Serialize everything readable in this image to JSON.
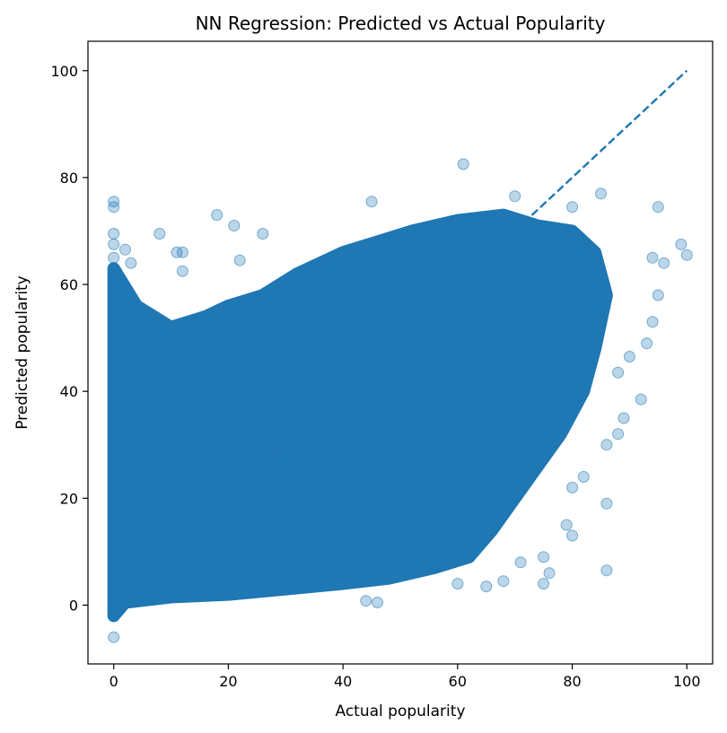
{
  "chart_data": {
    "type": "scatter",
    "title": "NN Regression: Predicted vs Actual Popularity",
    "xlabel": "Actual popularity",
    "ylabel": "Predicted popularity",
    "xlim": [
      -4.5,
      104.5
    ],
    "ylim": [
      -11,
      105.5
    ],
    "xticks": [
      0,
      20,
      40,
      60,
      80,
      100
    ],
    "yticks": [
      0,
      20,
      40,
      60,
      80,
      100
    ],
    "xtick_labels": [
      "0",
      "20",
      "40",
      "60",
      "80",
      "100"
    ],
    "ytick_labels": [
      "0",
      "20",
      "40",
      "60",
      "80",
      "100"
    ],
    "grid": false,
    "legend": "none",
    "marker_color": "#1f77b4",
    "marker_alpha": 0.3,
    "reference_line": {
      "style": "dashed",
      "color": "#1f77b4",
      "x": [
        0,
        100
      ],
      "y": [
        0,
        100
      ]
    },
    "series": [
      {
        "dense_region": [
          [
            0,
            -2
          ],
          [
            0,
            63
          ],
          [
            4,
            56
          ],
          [
            10,
            52
          ],
          [
            16,
            54
          ],
          [
            20,
            56
          ],
          [
            26,
            58
          ],
          [
            32,
            62
          ],
          [
            40,
            66
          ],
          [
            46,
            68
          ],
          [
            52,
            70
          ],
          [
            60,
            72
          ],
          [
            68,
            73
          ],
          [
            74,
            71
          ],
          [
            80,
            70
          ],
          [
            84,
            66
          ],
          [
            86,
            58
          ],
          [
            84,
            48
          ],
          [
            82,
            40
          ],
          [
            78,
            32
          ],
          [
            74,
            26
          ],
          [
            70,
            20
          ],
          [
            66,
            14
          ],
          [
            62,
            9
          ],
          [
            56,
            7
          ],
          [
            48,
            5
          ],
          [
            40,
            4
          ],
          [
            30,
            3
          ],
          [
            20,
            2
          ],
          [
            10,
            1.5
          ],
          [
            2,
            0.5
          ]
        ],
        "outliers": [
          [
            0,
            75.5
          ],
          [
            0,
            74.5
          ],
          [
            0,
            69.5
          ],
          [
            0,
            67.5
          ],
          [
            0,
            65
          ],
          [
            0,
            -6
          ],
          [
            2,
            66.5
          ],
          [
            3,
            64
          ],
          [
            8,
            69.5
          ],
          [
            11,
            66
          ],
          [
            12,
            66
          ],
          [
            12,
            62.5
          ],
          [
            18,
            73
          ],
          [
            21,
            71
          ],
          [
            22,
            64.5
          ],
          [
            26,
            69.5
          ],
          [
            61,
            82.5
          ],
          [
            45,
            75.5
          ],
          [
            70,
            76.5
          ],
          [
            80,
            74.5
          ],
          [
            85,
            77
          ],
          [
            95,
            74.5
          ],
          [
            99,
            67.5
          ],
          [
            100,
            65.5
          ],
          [
            94,
            65
          ],
          [
            96,
            64
          ],
          [
            95,
            58
          ],
          [
            94,
            53
          ],
          [
            93,
            49
          ],
          [
            90,
            46.5
          ],
          [
            88,
            43.5
          ],
          [
            92,
            38.5
          ],
          [
            89,
            35
          ],
          [
            86,
            30
          ],
          [
            88,
            32
          ],
          [
            82,
            24
          ],
          [
            80,
            22
          ],
          [
            86,
            19
          ],
          [
            79,
            15
          ],
          [
            80,
            13
          ],
          [
            75,
            9
          ],
          [
            76,
            6
          ],
          [
            75,
            4
          ],
          [
            86,
            6.5
          ],
          [
            71,
            8
          ],
          [
            68,
            4.5
          ],
          [
            60,
            4
          ],
          [
            65,
            3.5
          ],
          [
            46,
            0.5
          ],
          [
            44,
            0.8
          ]
        ]
      }
    ]
  }
}
